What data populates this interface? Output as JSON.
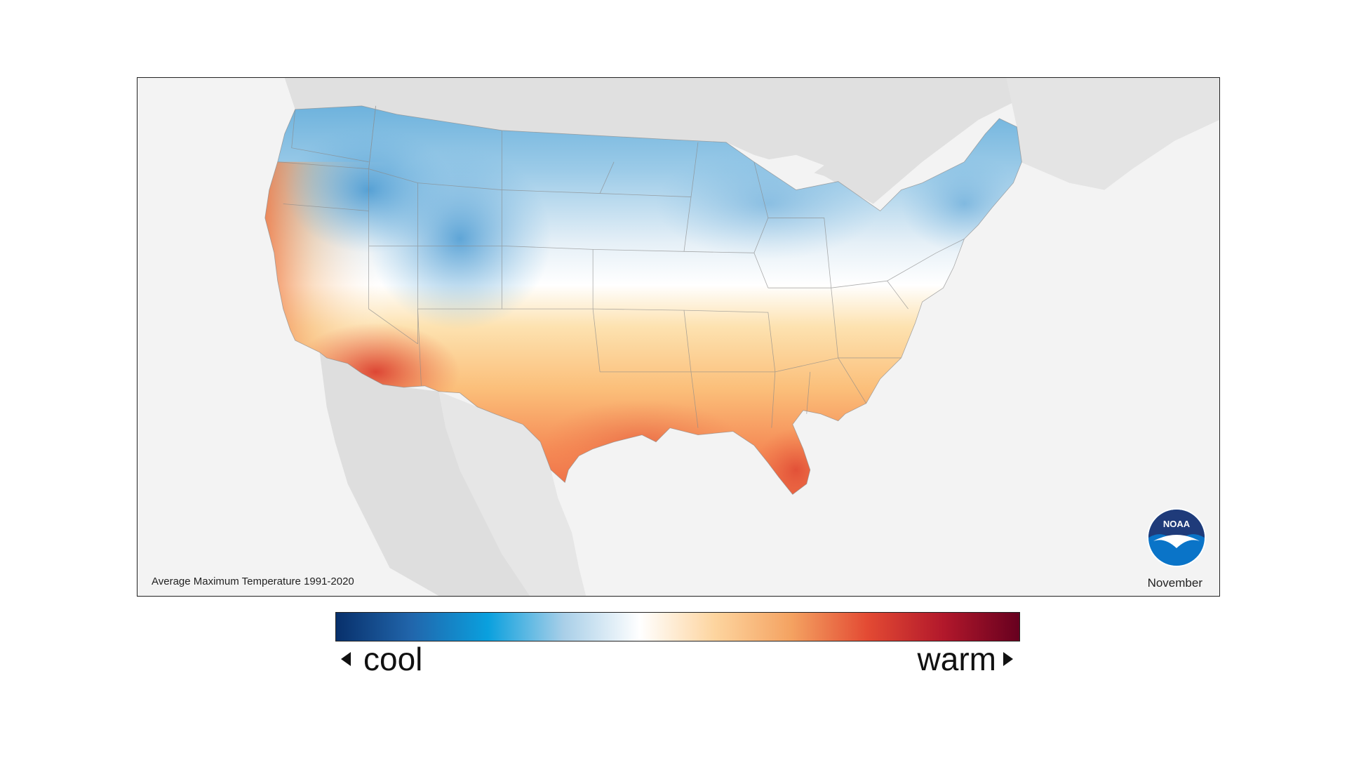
{
  "map": {
    "caption": "Average Maximum Temperature 1991-2020",
    "month": "November",
    "logo_text": "NOAA",
    "colors": {
      "ocean": "#f3f3f3",
      "neighbor_land": "#e0e0e0",
      "state_lines": "#8a8a8a"
    }
  },
  "legend": {
    "cool_label": "cool",
    "warm_label": "warm",
    "gradient_stops": [
      "#08306b",
      "#2166ac",
      "#0aa0de",
      "#a9cfe8",
      "#ffffff",
      "#fdd49e",
      "#f4a261",
      "#e34a33",
      "#b2182b",
      "#67001f"
    ]
  }
}
